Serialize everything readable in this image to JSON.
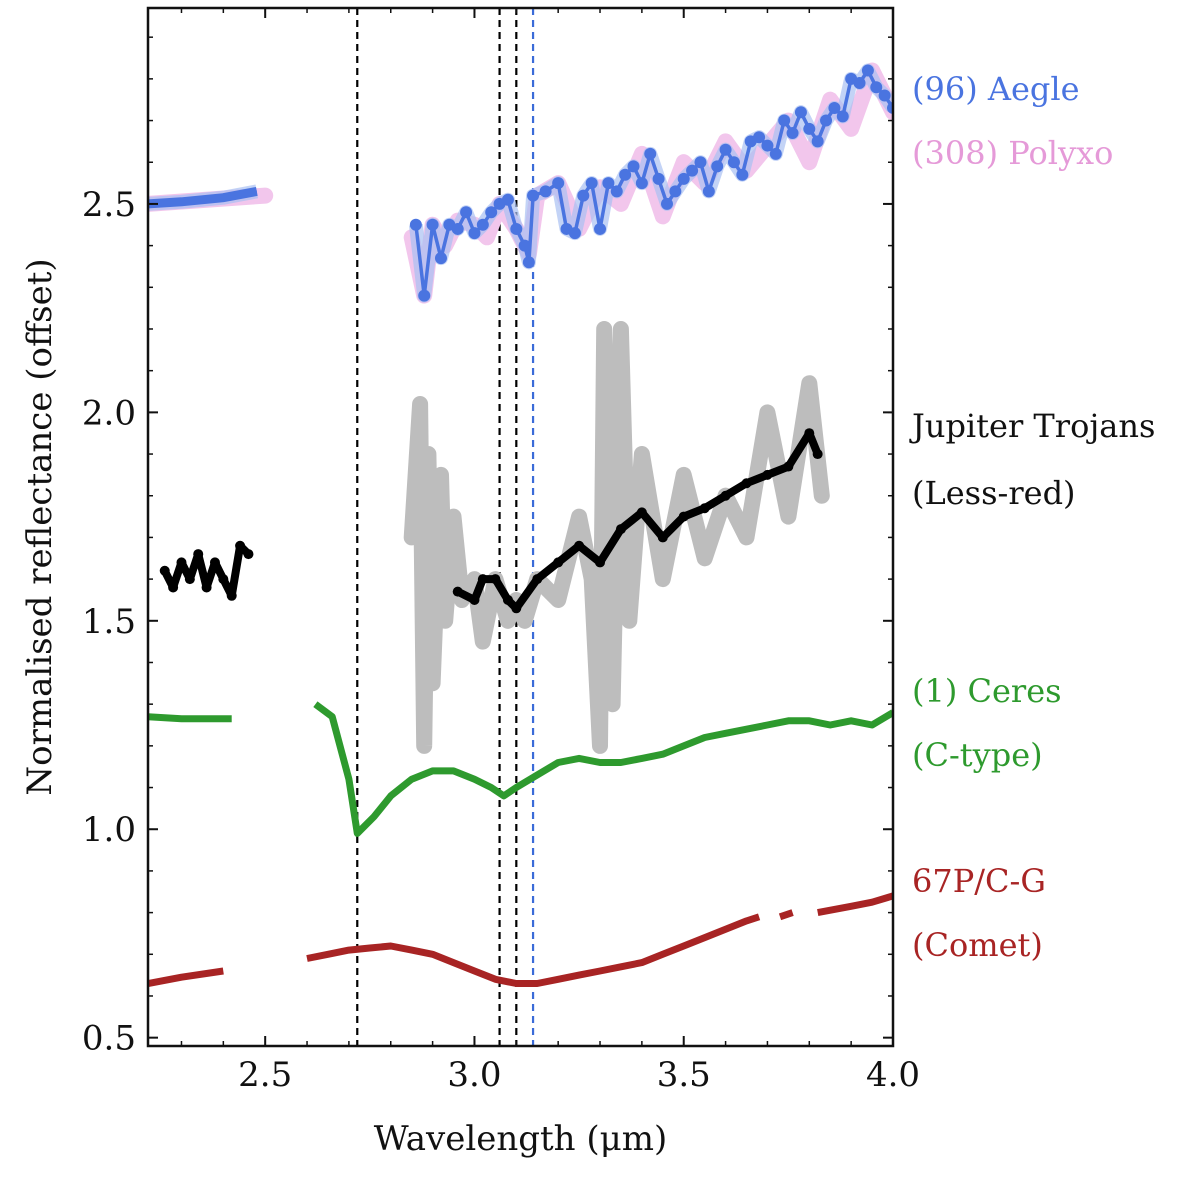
{
  "chart_data": {
    "type": "line",
    "xlabel": "Wavelength (μm)",
    "ylabel": "Normalised reflectance (offset)",
    "xlim": [
      2.22,
      4.0
    ],
    "ylim": [
      0.48,
      2.97
    ],
    "x_ticks": [
      {
        "value": 2.5,
        "label": "2.5"
      },
      {
        "value": 3.0,
        "label": "3.0"
      },
      {
        "value": 3.5,
        "label": "3.5"
      },
      {
        "value": 4.0,
        "label": "4.0"
      }
    ],
    "y_ticks": [
      {
        "value": 0.5,
        "label": "0.5"
      },
      {
        "value": 1.0,
        "label": "1.0"
      },
      {
        "value": 1.5,
        "label": "1.5"
      },
      {
        "value": 2.0,
        "label": "2.0"
      },
      {
        "value": 2.5,
        "label": "2.5"
      }
    ],
    "vlines": [
      {
        "x": 2.72,
        "color": "#000000"
      },
      {
        "x": 3.06,
        "color": "#000000"
      },
      {
        "x": 3.1,
        "color": "#000000"
      },
      {
        "x": 3.14,
        "color": "#3a6bd8"
      }
    ],
    "series": [
      {
        "name": "(308) Polyxo",
        "color": "#f2c6ec",
        "style": "band",
        "segments": [
          [
            [
              2.22,
              2.5
            ],
            [
              2.5,
              2.52
            ]
          ],
          [
            [
              2.85,
              2.42
            ],
            [
              2.88,
              2.28
            ],
            [
              2.9,
              2.45
            ],
            [
              2.93,
              2.4
            ],
            [
              2.96,
              2.46
            ],
            [
              3.0,
              2.45
            ],
            [
              3.03,
              2.42
            ],
            [
              3.06,
              2.5
            ],
            [
              3.1,
              2.44
            ],
            [
              3.13,
              2.38
            ],
            [
              3.15,
              2.52
            ],
            [
              3.2,
              2.55
            ],
            [
              3.25,
              2.44
            ],
            [
              3.3,
              2.54
            ],
            [
              3.35,
              2.5
            ],
            [
              3.4,
              2.62
            ],
            [
              3.45,
              2.47
            ],
            [
              3.5,
              2.6
            ],
            [
              3.55,
              2.55
            ],
            [
              3.6,
              2.65
            ],
            [
              3.65,
              2.58
            ],
            [
              3.7,
              2.64
            ],
            [
              3.75,
              2.7
            ],
            [
              3.8,
              2.6
            ],
            [
              3.85,
              2.75
            ],
            [
              3.9,
              2.68
            ],
            [
              3.95,
              2.82
            ],
            [
              4.0,
              2.72
            ]
          ]
        ]
      },
      {
        "name": "(96) Aegle",
        "color": "#4a74e0",
        "style": "dots",
        "segments": [
          [
            [
              2.22,
              2.5
            ],
            [
              2.3,
              2.505
            ],
            [
              2.4,
              2.515
            ],
            [
              2.48,
              2.53
            ]
          ],
          [
            [
              2.86,
              2.45
            ],
            [
              2.88,
              2.28
            ],
            [
              2.9,
              2.45
            ],
            [
              2.92,
              2.37
            ],
            [
              2.94,
              2.45
            ],
            [
              2.96,
              2.44
            ],
            [
              2.98,
              2.48
            ],
            [
              3.0,
              2.43
            ],
            [
              3.02,
              2.45
            ],
            [
              3.04,
              2.48
            ],
            [
              3.06,
              2.5
            ],
            [
              3.08,
              2.51
            ],
            [
              3.1,
              2.44
            ],
            [
              3.12,
              2.4
            ],
            [
              3.13,
              2.36
            ],
            [
              3.14,
              2.52
            ],
            [
              3.17,
              2.53
            ],
            [
              3.2,
              2.55
            ],
            [
              3.22,
              2.44
            ],
            [
              3.24,
              2.43
            ],
            [
              3.26,
              2.52
            ],
            [
              3.28,
              2.55
            ],
            [
              3.3,
              2.44
            ],
            [
              3.32,
              2.55
            ],
            [
              3.34,
              2.53
            ],
            [
              3.36,
              2.57
            ],
            [
              3.38,
              2.59
            ],
            [
              3.4,
              2.55
            ],
            [
              3.42,
              2.62
            ],
            [
              3.44,
              2.56
            ],
            [
              3.46,
              2.5
            ],
            [
              3.48,
              2.53
            ],
            [
              3.5,
              2.56
            ],
            [
              3.52,
              2.58
            ],
            [
              3.54,
              2.6
            ],
            [
              3.56,
              2.53
            ],
            [
              3.58,
              2.59
            ],
            [
              3.6,
              2.63
            ],
            [
              3.62,
              2.6
            ],
            [
              3.64,
              2.57
            ],
            [
              3.66,
              2.65
            ],
            [
              3.68,
              2.66
            ],
            [
              3.7,
              2.64
            ],
            [
              3.72,
              2.62
            ],
            [
              3.74,
              2.7
            ],
            [
              3.76,
              2.67
            ],
            [
              3.78,
              2.72
            ],
            [
              3.8,
              2.68
            ],
            [
              3.82,
              2.65
            ],
            [
              3.84,
              2.7
            ],
            [
              3.86,
              2.73
            ],
            [
              3.88,
              2.71
            ],
            [
              3.9,
              2.8
            ],
            [
              3.92,
              2.79
            ],
            [
              3.94,
              2.82
            ],
            [
              3.96,
              2.78
            ],
            [
              3.98,
              2.76
            ],
            [
              4.0,
              2.73
            ]
          ]
        ]
      },
      {
        "name": "Jupiter Trojans (Less-red) range",
        "color": "#bdbdbd",
        "style": "band",
        "segments": [
          [
            [
              2.85,
              1.7
            ],
            [
              2.87,
              2.02
            ],
            [
              2.88,
              1.2
            ],
            [
              2.89,
              1.9
            ],
            [
              2.9,
              1.35
            ],
            [
              2.92,
              1.85
            ],
            [
              2.93,
              1.5
            ],
            [
              2.95,
              1.75
            ],
            [
              2.97,
              1.55
            ],
            [
              3.0,
              1.6
            ],
            [
              3.02,
              1.45
            ],
            [
              3.05,
              1.6
            ],
            [
              3.08,
              1.5
            ],
            [
              3.1,
              1.55
            ],
            [
              3.12,
              1.5
            ],
            [
              3.15,
              1.6
            ],
            [
              3.2,
              1.55
            ],
            [
              3.25,
              1.75
            ],
            [
              3.28,
              1.6
            ],
            [
              3.3,
              1.2
            ],
            [
              3.31,
              2.2
            ],
            [
              3.33,
              1.3
            ],
            [
              3.35,
              2.2
            ],
            [
              3.37,
              1.5
            ],
            [
              3.4,
              1.9
            ],
            [
              3.45,
              1.6
            ],
            [
              3.5,
              1.85
            ],
            [
              3.55,
              1.65
            ],
            [
              3.6,
              1.8
            ],
            [
              3.65,
              1.7
            ],
            [
              3.7,
              2.0
            ],
            [
              3.75,
              1.75
            ],
            [
              3.8,
              2.07
            ],
            [
              3.83,
              1.8
            ]
          ]
        ]
      },
      {
        "name": "Jupiter Trojans (Less-red)",
        "color": "#000000",
        "style": "jagged",
        "segments": [
          [
            [
              2.26,
              1.62
            ],
            [
              2.28,
              1.58
            ],
            [
              2.3,
              1.64
            ],
            [
              2.32,
              1.6
            ],
            [
              2.34,
              1.66
            ],
            [
              2.36,
              1.58
            ],
            [
              2.38,
              1.64
            ],
            [
              2.4,
              1.6
            ],
            [
              2.42,
              1.56
            ],
            [
              2.44,
              1.68
            ],
            [
              2.46,
              1.66
            ]
          ],
          [
            [
              2.96,
              1.57
            ],
            [
              3.0,
              1.55
            ],
            [
              3.02,
              1.6
            ],
            [
              3.05,
              1.6
            ],
            [
              3.08,
              1.55
            ],
            [
              3.1,
              1.53
            ],
            [
              3.15,
              1.6
            ],
            [
              3.2,
              1.64
            ],
            [
              3.25,
              1.68
            ],
            [
              3.3,
              1.64
            ],
            [
              3.35,
              1.72
            ],
            [
              3.4,
              1.76
            ],
            [
              3.45,
              1.7
            ],
            [
              3.5,
              1.75
            ],
            [
              3.55,
              1.77
            ],
            [
              3.6,
              1.8
            ],
            [
              3.65,
              1.83
            ],
            [
              3.7,
              1.85
            ],
            [
              3.75,
              1.87
            ],
            [
              3.8,
              1.95
            ],
            [
              3.82,
              1.9
            ]
          ]
        ]
      },
      {
        "name": "(1) Ceres (C-type)",
        "color": "#2e9a2e",
        "style": "line",
        "segments": [
          [
            [
              2.22,
              1.27
            ],
            [
              2.3,
              1.265
            ],
            [
              2.42,
              1.265
            ]
          ],
          [
            [
              2.62,
              1.3
            ],
            [
              2.66,
              1.27
            ],
            [
              2.7,
              1.12
            ],
            [
              2.72,
              0.99
            ],
            [
              2.76,
              1.03
            ],
            [
              2.8,
              1.08
            ],
            [
              2.85,
              1.12
            ],
            [
              2.9,
              1.14
            ],
            [
              2.95,
              1.14
            ],
            [
              3.0,
              1.12
            ],
            [
              3.04,
              1.1
            ],
            [
              3.07,
              1.08
            ],
            [
              3.1,
              1.1
            ],
            [
              3.15,
              1.13
            ],
            [
              3.2,
              1.16
            ],
            [
              3.25,
              1.17
            ],
            [
              3.3,
              1.16
            ],
            [
              3.35,
              1.16
            ],
            [
              3.4,
              1.17
            ],
            [
              3.45,
              1.18
            ],
            [
              3.5,
              1.2
            ],
            [
              3.55,
              1.22
            ],
            [
              3.6,
              1.23
            ],
            [
              3.65,
              1.24
            ],
            [
              3.7,
              1.25
            ],
            [
              3.75,
              1.26
            ],
            [
              3.8,
              1.26
            ],
            [
              3.85,
              1.25
            ],
            [
              3.9,
              1.26
            ],
            [
              3.95,
              1.25
            ],
            [
              4.0,
              1.28
            ]
          ]
        ]
      },
      {
        "name": "67P/C-G (Comet)",
        "color": "#a82424",
        "style": "line",
        "segments": [
          [
            [
              2.22,
              0.63
            ],
            [
              2.3,
              0.645
            ],
            [
              2.4,
              0.66
            ]
          ],
          [
            [
              2.6,
              0.69
            ],
            [
              2.65,
              0.7
            ],
            [
              2.7,
              0.71
            ],
            [
              2.75,
              0.715
            ],
            [
              2.8,
              0.72
            ],
            [
              2.85,
              0.71
            ],
            [
              2.9,
              0.7
            ],
            [
              2.95,
              0.68
            ],
            [
              3.0,
              0.66
            ],
            [
              3.05,
              0.64
            ],
            [
              3.1,
              0.63
            ],
            [
              3.15,
              0.63
            ],
            [
              3.2,
              0.64
            ],
            [
              3.25,
              0.65
            ],
            [
              3.3,
              0.66
            ],
            [
              3.35,
              0.67
            ],
            [
              3.4,
              0.68
            ],
            [
              3.45,
              0.7
            ],
            [
              3.5,
              0.72
            ],
            [
              3.55,
              0.74
            ],
            [
              3.6,
              0.76
            ],
            [
              3.65,
              0.78
            ],
            [
              3.68,
              0.79
            ]
          ],
          [
            [
              3.73,
              0.79
            ],
            [
              3.76,
              0.8
            ]
          ],
          [
            [
              3.82,
              0.8
            ],
            [
              3.9,
              0.815
            ],
            [
              3.95,
              0.825
            ],
            [
              4.0,
              0.84
            ]
          ]
        ]
      }
    ],
    "legend": [
      {
        "text": "(96) Aegle",
        "color": "#4a74e0"
      },
      {
        "text": "(308) Polyxo",
        "color": "#e59ad8"
      },
      {
        "text": "Jupiter Trojans",
        "color": "#111111"
      },
      {
        "text": "(Less-red)",
        "color": "#111111"
      },
      {
        "text": "(1) Ceres",
        "color": "#2e9a2e"
      },
      {
        "text": "(C-type)",
        "color": "#2e9a2e"
      },
      {
        "text": "67P/C-G",
        "color": "#a82424"
      },
      {
        "text": "(Comet)",
        "color": "#a82424"
      }
    ]
  }
}
